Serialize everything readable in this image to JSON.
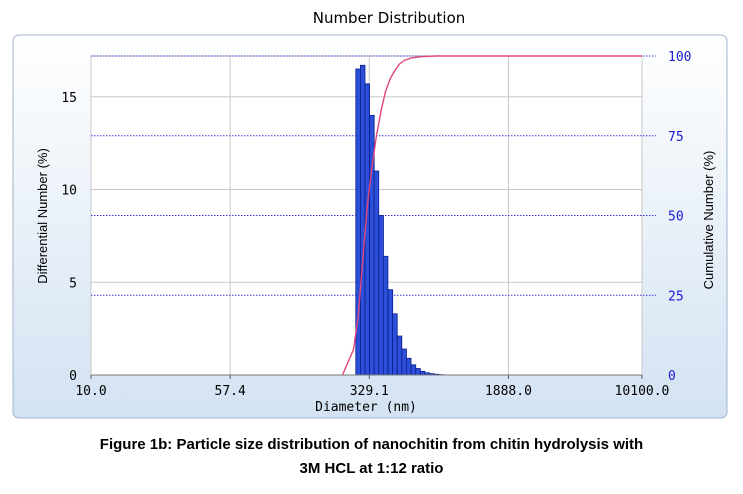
{
  "chart_data": {
    "type": "bar",
    "title": "Number Distribution",
    "xlabel": "Diameter (nm)",
    "ylabel": "Differential Number (%)",
    "y2label": "Cumulative Number (%)",
    "x_scale": "log",
    "xlim": [
      10.0,
      10100.0
    ],
    "x_ticks": [
      10.0,
      57.4,
      329.1,
      1888.0,
      10100.0
    ],
    "x_tick_labels": [
      "10.0",
      "57.4",
      "329.1",
      "1888.0",
      "10100.0"
    ],
    "ylim": [
      0,
      17.2
    ],
    "y_ticks": [
      0,
      5,
      10,
      15
    ],
    "y2lim": [
      0,
      100
    ],
    "y2_ticks": [
      0,
      25,
      50,
      75,
      100
    ],
    "grid": true,
    "series": [
      {
        "kind": "bar",
        "x": [
          286,
          303,
          321,
          340,
          360,
          382,
          404,
          429,
          454,
          481,
          510,
          540,
          573,
          607,
          643,
          681,
          722,
          765,
          810
        ],
        "values": [
          16.5,
          16.7,
          15.7,
          14.0,
          11.0,
          8.6,
          6.4,
          4.6,
          3.3,
          2.1,
          1.4,
          0.9,
          0.55,
          0.35,
          0.2,
          0.12,
          0.07,
          0.04,
          0.02
        ]
      },
      {
        "kind": "cumulative-line",
        "x": [
          235,
          270,
          286,
          303,
          321,
          340,
          360,
          382,
          404,
          429,
          454,
          481,
          510,
          560,
          640,
          760,
          900,
          10100
        ],
        "values": [
          0,
          8,
          18,
          36,
          53,
          65,
          75,
          83,
          89,
          93,
          95.5,
          97.5,
          98.6,
          99.4,
          99.8,
          100,
          100,
          100
        ]
      }
    ],
    "colors": {
      "bars": "#2c4fd9",
      "bar_edge": "#0b1f8c",
      "cumulative_line": "#e0457a",
      "plot_bg": "#ffffff",
      "outer_bg": "#dde9f5",
      "grid": "#c8c8c8",
      "axis_text": "#000000",
      "y2_text": "#1a1ad8",
      "dotted_ref": "#3a3ae0"
    }
  },
  "caption": {
    "line1": "Figure 1b: Particle size distribution of nanochitin from chitin hydrolysis with",
    "line2": "3M HCL at 1:12 ratio"
  }
}
